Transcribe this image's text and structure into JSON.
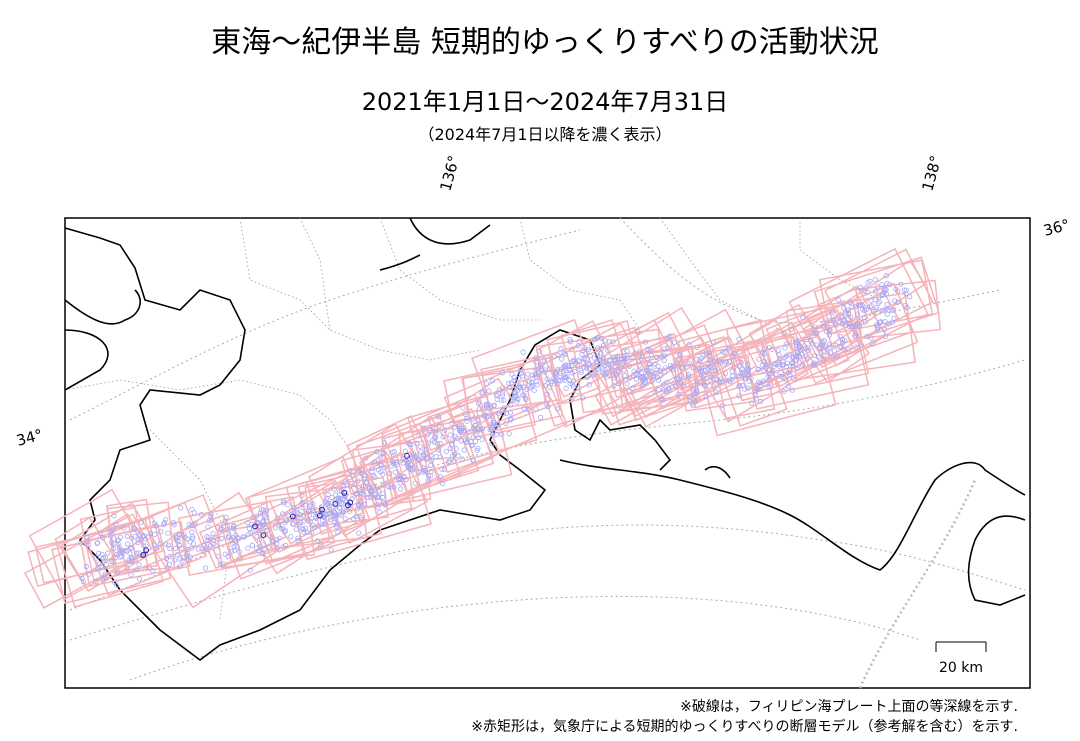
{
  "header": {
    "title": "東海～紀伊半島 短期的ゆっくりすべりの活動状況",
    "period": "2021年1月1日～2024年7月31日",
    "note": "（2024年7月1日以降を濃く表示）"
  },
  "map": {
    "longitude_labels": [
      "136°",
      "138°"
    ],
    "latitude_labels": [
      "34°",
      "36°"
    ],
    "scale_bar": "20 km"
  },
  "footnotes": [
    "※破線は，フィリピン海プレート上面の等深線を示す.",
    "※赤矩形は，気象庁による短期的ゆっくりすべりの断層モデル（参考解を含む）を示す."
  ]
}
